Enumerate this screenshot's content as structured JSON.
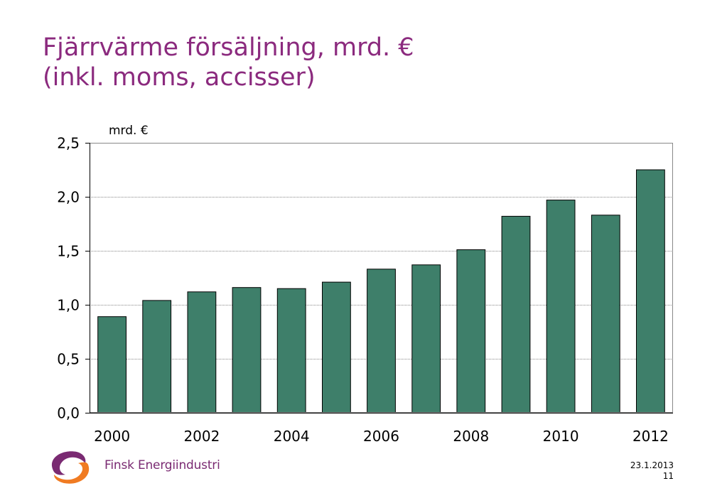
{
  "slide": {
    "title_line1": "Fjärrvärme försäljning, mrd. €",
    "title_line2": "(inkl. moms, accisser)",
    "company": "Finsk Energiindustri",
    "date": "23.1.2013",
    "page_number": "11"
  },
  "colors": {
    "title": "#8b2a7e",
    "bar": "#3e7f6a",
    "logo_purple": "#7a2a72",
    "logo_orange": "#f07b22"
  },
  "chart_data": {
    "type": "bar",
    "unit_label": "mrd. €",
    "categories": [
      "2000",
      "2001",
      "2002",
      "2003",
      "2004",
      "2005",
      "2006",
      "2007",
      "2008",
      "2009",
      "2010",
      "2011",
      "2012"
    ],
    "x_tick_labels": [
      "2000",
      "",
      "2002",
      "",
      "2004",
      "",
      "2006",
      "",
      "2008",
      "",
      "2010",
      "",
      "2012"
    ],
    "values": [
      0.89,
      1.04,
      1.12,
      1.16,
      1.15,
      1.21,
      1.33,
      1.37,
      1.51,
      1.82,
      1.97,
      1.83,
      2.25
    ],
    "ylim": [
      0,
      2.5
    ],
    "y_ticks": [
      0,
      0.5,
      1.0,
      1.5,
      2.0,
      2.5
    ],
    "y_tick_labels": [
      "0,0",
      "0,5",
      "1,0",
      "1,5",
      "2,0",
      "2,5"
    ],
    "grid": true,
    "legend": "none"
  }
}
